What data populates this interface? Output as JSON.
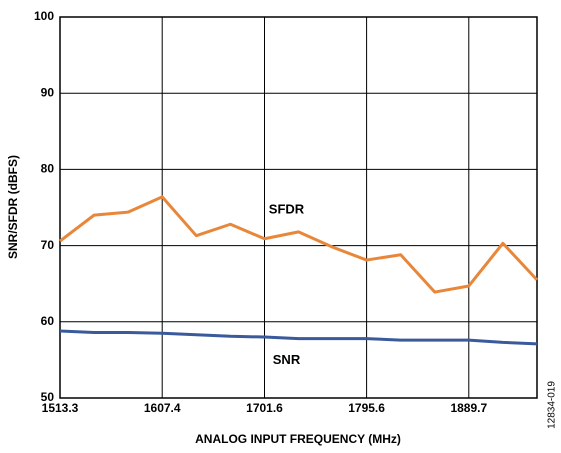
{
  "chart_data": {
    "type": "line",
    "x_label": "ANALOG INPUT FREQUENCY (MHz)",
    "y_label": "SNR/SFDR (dBFS)",
    "annotation": "12834-019",
    "x": [
      1513.3,
      1544.7,
      1576.0,
      1607.4,
      1638.8,
      1670.2,
      1701.6,
      1732.9,
      1764.3,
      1795.6,
      1827.0,
      1858.4,
      1889.7,
      1921.1,
      1952.5
    ],
    "series": [
      {
        "name": "SFDR",
        "color": "#e8873a",
        "values": [
          70.6,
          74.0,
          74.4,
          76.4,
          71.3,
          72.8,
          70.9,
          71.8,
          69.8,
          68.1,
          68.8,
          63.9,
          64.7,
          70.3,
          65.5
        ]
      },
      {
        "name": "SNR",
        "color": "#3a5a9c",
        "values": [
          58.8,
          58.6,
          58.6,
          58.5,
          58.3,
          58.1,
          58.0,
          57.8,
          57.8,
          57.8,
          57.6,
          57.6,
          57.6,
          57.3,
          57.1
        ]
      }
    ],
    "xlim": [
      1513.3,
      1952.5
    ],
    "xticks": [
      1513.3,
      1607.4,
      1701.6,
      1795.6,
      1889.7
    ],
    "ylim": [
      50,
      100
    ],
    "yticks": [
      50,
      60,
      70,
      80,
      90,
      100
    ],
    "grid": true
  }
}
